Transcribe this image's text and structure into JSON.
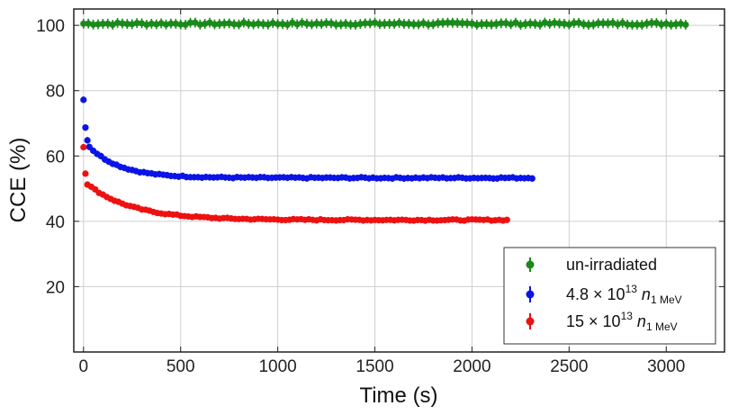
{
  "chart_data": {
    "type": "scatter",
    "title": "",
    "xlabel": "Time (s)",
    "ylabel": "CCE (%)",
    "xlim": [
      -50,
      3300
    ],
    "ylim": [
      0,
      105
    ],
    "xticks": [
      "0",
      "500",
      "1000",
      "1500",
      "2000",
      "2500",
      "3000"
    ],
    "yticks": [
      "20",
      "40",
      "60",
      "80",
      "100"
    ],
    "grid": true,
    "legend_position": "bottom-right",
    "series": [
      {
        "name": "un-irradiated",
        "color": "#1a8a1a",
        "error_bar": 1.5,
        "t_start": 0,
        "t_end": 3100,
        "t_step": 25,
        "y_curve": {
          "asymptote": 100.5,
          "amplitude": 0,
          "tau": 1,
          "jitter": 0.35
        }
      },
      {
        "name_main": "4.8 × 10",
        "name_exp": "13",
        "name_var": "n",
        "name_sub": "1 MeV",
        "color": "#0a14e6",
        "error_bar": 1.0,
        "points": [
          [
            0,
            77.2
          ],
          [
            10,
            68.7
          ],
          [
            20,
            64.8
          ]
        ],
        "t_start": 30,
        "t_end": 2310,
        "t_step": 20,
        "y_curve": {
          "asymptote": 53.3,
          "amplitude": 11.5,
          "tau": 160,
          "jitter": 0.2
        }
      },
      {
        "name_main": "15 × 10",
        "name_exp": "13",
        "name_var": "n",
        "name_sub": "1 MeV",
        "color": "#ee1111",
        "error_bar": 0.8,
        "points": [
          [
            0,
            62.7
          ],
          [
            10,
            54.6
          ]
        ],
        "t_start": 20,
        "t_end": 2180,
        "t_step": 20,
        "y_curve": {
          "asymptote": 40.4,
          "amplitude": 12.0,
          "tau": 230,
          "jitter": 0.2
        }
      }
    ]
  }
}
